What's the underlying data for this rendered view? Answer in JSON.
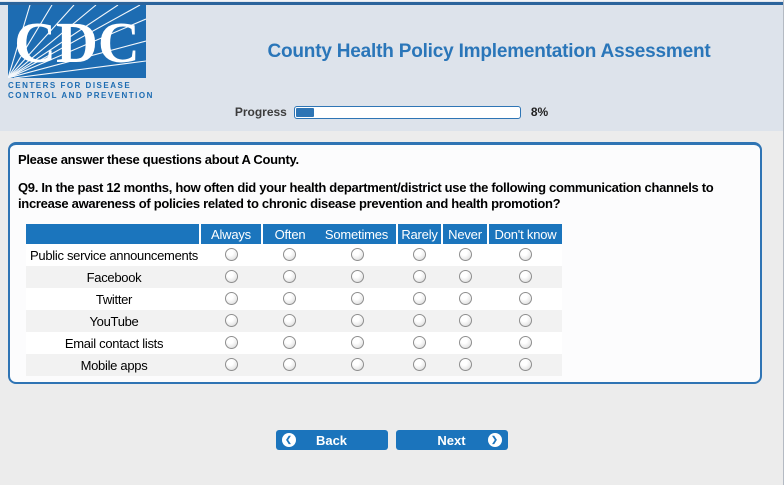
{
  "header": {
    "logo": {
      "acronym": "CDC",
      "line1": "CENTERS FOR DISEASE",
      "line2": "CONTROL AND PREVENTION"
    },
    "title": "County Health Policy Implementation Assessment"
  },
  "progress": {
    "label": "Progress",
    "percent": 8,
    "percent_label": "8%"
  },
  "survey": {
    "intro": "Please answer these questions about A County.",
    "question_number": "Q9.",
    "question_text": " In the past 12 months, how often did your health department/district use the following communication channels to increase awareness of policies related to chronic disease prevention and health promotion?",
    "columns": [
      "Always",
      "Often",
      "Sometimes",
      "Rarely",
      "Never",
      "Don't know"
    ],
    "rows": [
      "Public service announcements",
      "Facebook",
      "Twitter",
      "YouTube",
      "Email contact lists",
      "Mobile apps"
    ]
  },
  "nav": {
    "back_label": "Back",
    "next_label": "Next",
    "back_icon_glyph": "❮",
    "next_icon_glyph": "❯"
  },
  "icons": {
    "back": "chevron-left-circle",
    "next": "chevron-right-circle"
  },
  "colors": {
    "brand_blue": "#1d6cb2",
    "title_blue": "#2a76b9",
    "table_header_blue": "#1b75bd",
    "button_blue": "#1b74bc",
    "progress_blue": "#2e75b5",
    "header_bg": "#dde3eb",
    "page_bg": "#ececec",
    "row_alt_bg": "#f2f2f2"
  }
}
